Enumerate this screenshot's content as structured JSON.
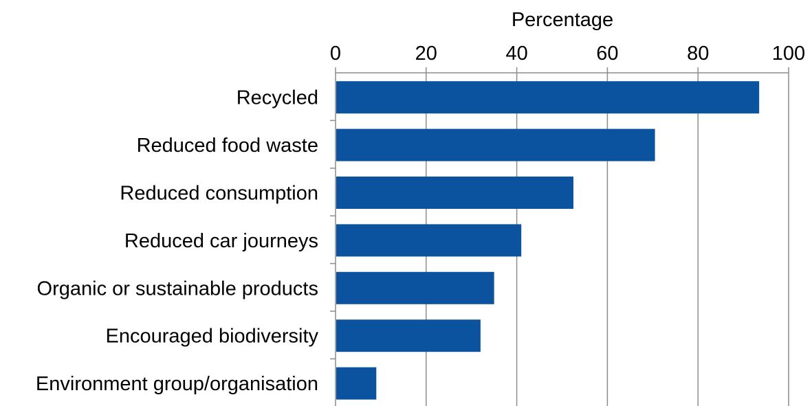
{
  "chart_data": {
    "type": "bar",
    "orientation": "horizontal",
    "categories": [
      "Recycled",
      "Reduced food waste",
      "Reduced consumption",
      "Reduced car journeys",
      "Organic or sustainable products",
      "Encouraged biodiversity",
      "Environment group/organisation"
    ],
    "values": [
      93.5,
      70.5,
      52.5,
      41,
      35,
      32,
      9
    ],
    "xlabel": "Percentage",
    "ylabel": "",
    "title": "",
    "xlim": [
      0,
      100
    ],
    "xticks": [
      0,
      20,
      40,
      60,
      80,
      100
    ],
    "x_axis_position": "top",
    "grid": true,
    "legend": "none",
    "bar_color": "#0b539f",
    "grid_color": "#8c8c8c"
  }
}
